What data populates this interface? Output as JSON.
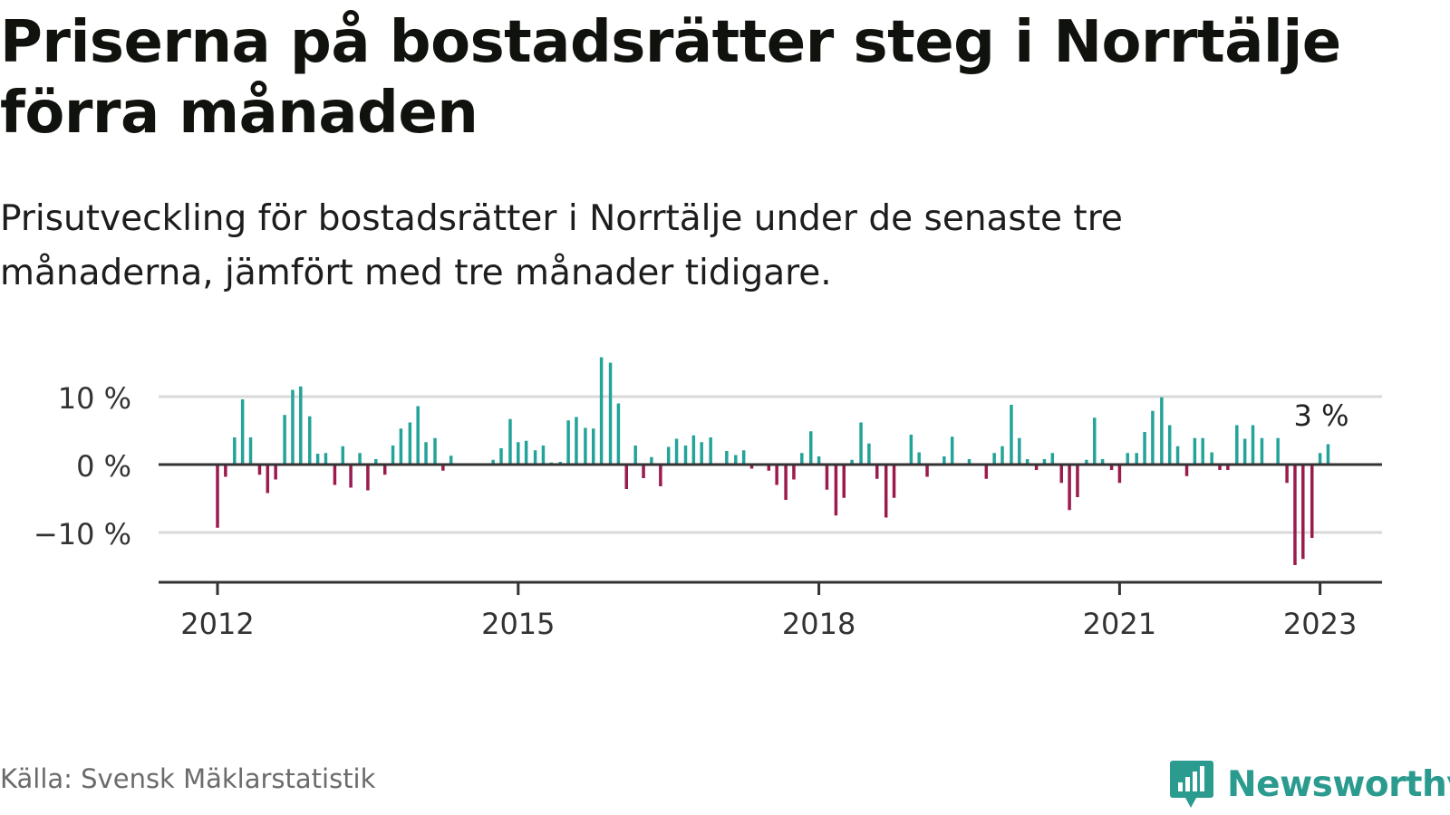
{
  "title": "Priserna på bostadsrätter steg i Norrtälje förra månaden",
  "subtitle": "Prisutveckling för bostadsrätter i Norrtälje under de senaste tre månaderna, jämfört med tre månader tidigare.",
  "source": "Källa: Svensk Mäklarstatistik",
  "logo_text": "Newsworthy",
  "colors": {
    "positive": "#23a39a",
    "negative": "#9b1b4e",
    "grid": "#d9d9d9",
    "axis": "#333333",
    "brand": "#2a9b8e"
  },
  "chart_data": {
    "type": "bar",
    "title": "Priserna på bostadsrätter steg i Norrtälje förra månaden",
    "subtitle": "Prisutveckling för bostadsrätter i Norrtälje under de senaste tre månaderna, jämfört med tre månader tidigare.",
    "xlabel": "",
    "ylabel": "",
    "ylim": [
      -17,
      17
    ],
    "grid": true,
    "yticks": [
      {
        "value": 10,
        "label": "10 %"
      },
      {
        "value": 0,
        "label": "0 %"
      },
      {
        "value": -10,
        "label": "−10 %"
      }
    ],
    "xticks": [
      {
        "value": 2012,
        "label": "2012"
      },
      {
        "value": 2015,
        "label": "2015"
      },
      {
        "value": 2018,
        "label": "2018"
      },
      {
        "value": 2021,
        "label": "2021"
      },
      {
        "value": 2023,
        "label": "2023"
      }
    ],
    "annotation": {
      "label": "3 %",
      "x": 2023.0,
      "value": 3
    },
    "bars": [
      {
        "x": 2012.0,
        "value": -9.3
      },
      {
        "x": 2012.08,
        "value": -1.8
      },
      {
        "x": 2012.17,
        "value": 4.0
      },
      {
        "x": 2012.25,
        "value": 9.6
      },
      {
        "x": 2012.33,
        "value": 4.0
      },
      {
        "x": 2012.42,
        "value": -1.5
      },
      {
        "x": 2012.5,
        "value": -4.2
      },
      {
        "x": 2012.58,
        "value": -2.2
      },
      {
        "x": 2012.67,
        "value": 7.3
      },
      {
        "x": 2012.75,
        "value": 11.0
      },
      {
        "x": 2012.83,
        "value": 11.5
      },
      {
        "x": 2012.92,
        "value": 7.1
      },
      {
        "x": 2013.0,
        "value": 1.6
      },
      {
        "x": 2013.08,
        "value": 1.7
      },
      {
        "x": 2013.17,
        "value": -3.0
      },
      {
        "x": 2013.25,
        "value": 2.7
      },
      {
        "x": 2013.33,
        "value": -3.4
      },
      {
        "x": 2013.42,
        "value": 1.7
      },
      {
        "x": 2013.5,
        "value": -3.8
      },
      {
        "x": 2013.58,
        "value": 0.8
      },
      {
        "x": 2013.67,
        "value": -1.5
      },
      {
        "x": 2013.75,
        "value": 2.8
      },
      {
        "x": 2013.83,
        "value": 5.3
      },
      {
        "x": 2013.92,
        "value": 6.2
      },
      {
        "x": 2014.0,
        "value": 8.6
      },
      {
        "x": 2014.08,
        "value": 3.3
      },
      {
        "x": 2014.17,
        "value": 3.9
      },
      {
        "x": 2014.25,
        "value": -0.9
      },
      {
        "x": 2014.33,
        "value": 1.3
      },
      {
        "x": 2014.75,
        "value": 0.7
      },
      {
        "x": 2014.83,
        "value": 2.4
      },
      {
        "x": 2014.92,
        "value": 6.7
      },
      {
        "x": 2015.0,
        "value": 3.3
      },
      {
        "x": 2015.08,
        "value": 3.5
      },
      {
        "x": 2015.17,
        "value": 2.1
      },
      {
        "x": 2015.25,
        "value": 2.8
      },
      {
        "x": 2015.33,
        "value": 0.3
      },
      {
        "x": 2015.42,
        "value": 0.4
      },
      {
        "x": 2015.5,
        "value": 6.5
      },
      {
        "x": 2015.58,
        "value": 7.0
      },
      {
        "x": 2015.67,
        "value": 5.4
      },
      {
        "x": 2015.75,
        "value": 5.3
      },
      {
        "x": 2015.83,
        "value": 15.8
      },
      {
        "x": 2015.92,
        "value": 15.0
      },
      {
        "x": 2016.0,
        "value": 9.0
      },
      {
        "x": 2016.08,
        "value": -3.6
      },
      {
        "x": 2016.17,
        "value": 2.8
      },
      {
        "x": 2016.25,
        "value": -2.0
      },
      {
        "x": 2016.33,
        "value": 1.1
      },
      {
        "x": 2016.42,
        "value": -3.2
      },
      {
        "x": 2016.5,
        "value": 2.6
      },
      {
        "x": 2016.58,
        "value": 3.8
      },
      {
        "x": 2016.67,
        "value": 2.8
      },
      {
        "x": 2016.75,
        "value": 4.3
      },
      {
        "x": 2016.83,
        "value": 3.3
      },
      {
        "x": 2016.92,
        "value": 4.0
      },
      {
        "x": 2017.08,
        "value": 2.0
      },
      {
        "x": 2017.17,
        "value": 1.4
      },
      {
        "x": 2017.25,
        "value": 2.1
      },
      {
        "x": 2017.33,
        "value": -0.6
      },
      {
        "x": 2017.5,
        "value": -0.9
      },
      {
        "x": 2017.58,
        "value": -3.0
      },
      {
        "x": 2017.67,
        "value": -5.2
      },
      {
        "x": 2017.75,
        "value": -2.2
      },
      {
        "x": 2017.83,
        "value": 1.7
      },
      {
        "x": 2017.92,
        "value": 4.9
      },
      {
        "x": 2018.0,
        "value": 1.2
      },
      {
        "x": 2018.08,
        "value": -3.7
      },
      {
        "x": 2018.17,
        "value": -7.5
      },
      {
        "x": 2018.25,
        "value": -4.9
      },
      {
        "x": 2018.33,
        "value": 0.7
      },
      {
        "x": 2018.42,
        "value": 6.2
      },
      {
        "x": 2018.5,
        "value": 3.1
      },
      {
        "x": 2018.58,
        "value": -2.1
      },
      {
        "x": 2018.67,
        "value": -7.8
      },
      {
        "x": 2018.75,
        "value": -4.9
      },
      {
        "x": 2018.92,
        "value": 4.4
      },
      {
        "x": 2019.0,
        "value": 1.8
      },
      {
        "x": 2019.08,
        "value": -1.8
      },
      {
        "x": 2019.25,
        "value": 1.2
      },
      {
        "x": 2019.33,
        "value": 4.1
      },
      {
        "x": 2019.5,
        "value": 0.8
      },
      {
        "x": 2019.67,
        "value": -2.1
      },
      {
        "x": 2019.75,
        "value": 1.7
      },
      {
        "x": 2019.83,
        "value": 2.7
      },
      {
        "x": 2019.92,
        "value": 8.8
      },
      {
        "x": 2020.0,
        "value": 3.9
      },
      {
        "x": 2020.08,
        "value": 0.8
      },
      {
        "x": 2020.17,
        "value": -0.8
      },
      {
        "x": 2020.25,
        "value": 0.8
      },
      {
        "x": 2020.33,
        "value": 1.7
      },
      {
        "x": 2020.42,
        "value": -2.7
      },
      {
        "x": 2020.5,
        "value": -6.7
      },
      {
        "x": 2020.58,
        "value": -4.8
      },
      {
        "x": 2020.67,
        "value": 0.7
      },
      {
        "x": 2020.75,
        "value": 6.9
      },
      {
        "x": 2020.83,
        "value": 0.8
      },
      {
        "x": 2020.92,
        "value": -0.8
      },
      {
        "x": 2021.0,
        "value": -2.7
      },
      {
        "x": 2021.08,
        "value": 1.7
      },
      {
        "x": 2021.17,
        "value": 1.7
      },
      {
        "x": 2021.25,
        "value": 4.8
      },
      {
        "x": 2021.33,
        "value": 7.9
      },
      {
        "x": 2021.42,
        "value": 9.9
      },
      {
        "x": 2021.5,
        "value": 5.8
      },
      {
        "x": 2021.58,
        "value": 2.7
      },
      {
        "x": 2021.67,
        "value": -1.7
      },
      {
        "x": 2021.75,
        "value": 3.9
      },
      {
        "x": 2021.83,
        "value": 3.9
      },
      {
        "x": 2021.92,
        "value": 1.8
      },
      {
        "x": 2022.0,
        "value": -0.8
      },
      {
        "x": 2022.08,
        "value": -0.8
      },
      {
        "x": 2022.17,
        "value": 5.8
      },
      {
        "x": 2022.25,
        "value": 3.8
      },
      {
        "x": 2022.33,
        "value": 5.8
      },
      {
        "x": 2022.42,
        "value": 3.9
      },
      {
        "x": 2022.58,
        "value": 3.9
      },
      {
        "x": 2022.67,
        "value": -2.7
      },
      {
        "x": 2022.75,
        "value": -14.8
      },
      {
        "x": 2022.83,
        "value": -13.9
      },
      {
        "x": 2022.92,
        "value": -10.8
      },
      {
        "x": 2023.0,
        "value": 1.7
      },
      {
        "x": 2023.08,
        "value": 3.0
      }
    ]
  }
}
